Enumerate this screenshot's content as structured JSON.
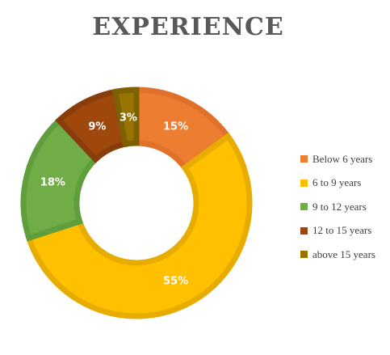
{
  "chart_data": {
    "type": "pie",
    "title": "EXPERIENCE",
    "categories": [
      "Below 6 years",
      "6 to 9 years",
      "9 to 12 years",
      "12 to 15 years",
      "above 15 years"
    ],
    "values": [
      15,
      55,
      18,
      9,
      3
    ],
    "data_labels": [
      "15%",
      "55%",
      "18%",
      "9%",
      "3%"
    ],
    "colors": [
      "#ED7D31",
      "#FFC000",
      "#70AD47",
      "#9E480E",
      "#997300"
    ],
    "border_colors": [
      "#E0712A",
      "#E6AC00",
      "#5E9E3C",
      "#8A3D0C",
      "#7D6000"
    ],
    "legend_position": "right",
    "donut": true
  }
}
